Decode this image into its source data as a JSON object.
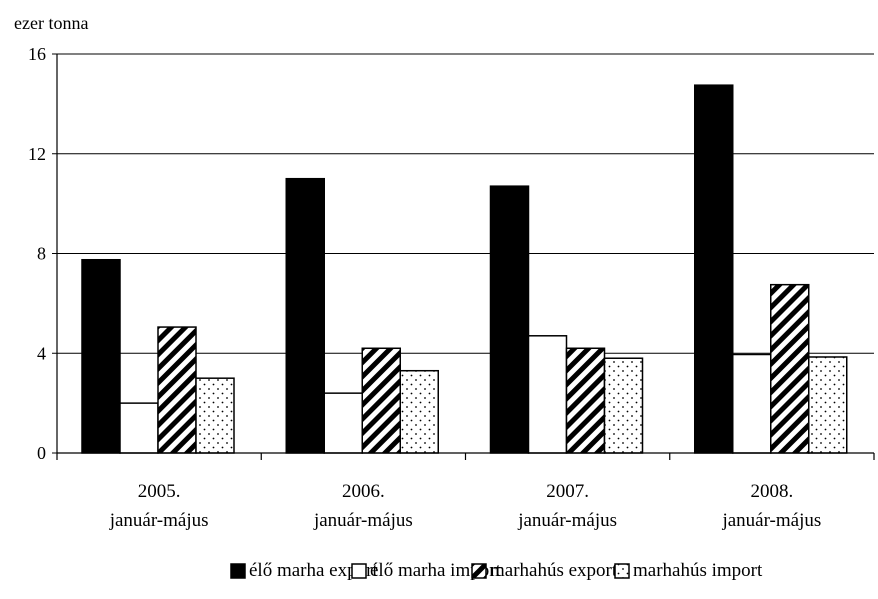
{
  "chart_data": {
    "type": "bar",
    "ylabel": "ezer tonna",
    "ylim": [
      0,
      16
    ],
    "yticks": [
      0,
      4,
      8,
      12,
      16
    ],
    "grid": true,
    "legend_position": "bottom",
    "categories": [
      [
        "2005.",
        "január-május"
      ],
      [
        "2006.",
        "január-május"
      ],
      [
        "2007.",
        "január-május"
      ],
      [
        "2008.",
        "január-május"
      ]
    ],
    "series": [
      {
        "name": "élő marha export",
        "pattern": "solid-black",
        "values": [
          7.75,
          11.0,
          10.7,
          14.75
        ]
      },
      {
        "name": "élő marha import",
        "pattern": "white",
        "values": [
          2.0,
          2.4,
          4.7,
          3.95
        ]
      },
      {
        "name": "marhahús export",
        "pattern": "diagonal-hatch",
        "values": [
          5.05,
          4.2,
          4.2,
          6.75
        ]
      },
      {
        "name": "marhahús import",
        "pattern": "dotted",
        "values": [
          3.0,
          3.3,
          3.8,
          3.85
        ]
      }
    ]
  }
}
